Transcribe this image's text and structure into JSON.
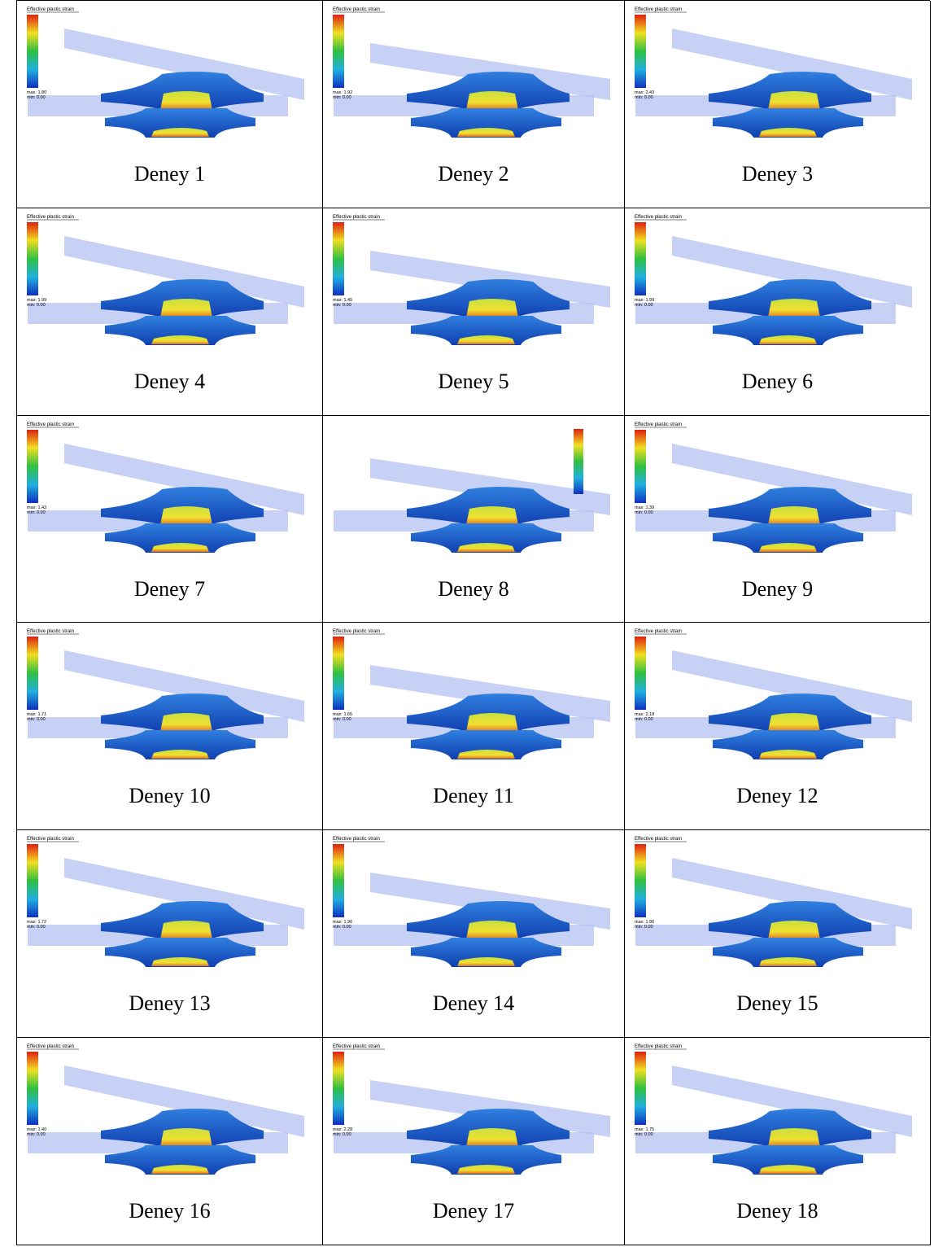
{
  "cells": [
    {
      "caption": "Deney 1",
      "legend": {
        "title": "Effective plastic strain",
        "max": "max: 1.80",
        "min": "min: 0.00"
      }
    },
    {
      "caption": "Deney 2",
      "legend": {
        "title": "Effective plastic strain",
        "max": "max: 1.92",
        "min": "min: 0.00"
      }
    },
    {
      "caption": "Deney 3",
      "legend": {
        "title": "Effective plastic strain",
        "max": "max: 2.43",
        "min": "min: 0.00"
      }
    },
    {
      "caption": "Deney 4",
      "legend": {
        "title": "Effective plastic strain",
        "max": "max: 1.99",
        "min": "min: 0.00"
      }
    },
    {
      "caption": "Deney 5",
      "legend": {
        "title": "Effective plastic strain",
        "max": "max: 1.45",
        "min": "min: 0.00"
      }
    },
    {
      "caption": "Deney 6",
      "legend": {
        "title": "Effective plastic strain",
        "max": "max: 1.99",
        "min": "min: 0.00"
      }
    },
    {
      "caption": "Deney 7",
      "legend": {
        "title": "Effective plastic strain",
        "max": "max: 1.43",
        "min": "min: 0.00"
      }
    },
    {
      "caption": "Deney 8"
    },
    {
      "caption": "Deney 9",
      "legend": {
        "title": "Effective plastic strain",
        "max": "max: 1.39",
        "min": "min: 0.00"
      }
    },
    {
      "caption": "Deney 10",
      "legend": {
        "title": "Effective plastic strain",
        "max": "max: 1.71",
        "min": "min: 0.00"
      }
    },
    {
      "caption": "Deney 11",
      "legend": {
        "title": "Effective plastic strain",
        "max": "max: 1.65",
        "min": "min: 0.00"
      }
    },
    {
      "caption": "Deney 12",
      "legend": {
        "title": "Effective plastic strain",
        "max": "max: 2.18",
        "min": "min: 0.00"
      }
    },
    {
      "caption": "Deney 13",
      "legend": {
        "title": "Effective plastic strain",
        "max": "max: 1.72",
        "min": "min: 0.00"
      }
    },
    {
      "caption": "Deney 14",
      "legend": {
        "title": "Effective plastic strain",
        "max": "max: 1.90",
        "min": "min: 0.00"
      }
    },
    {
      "caption": "Deney 15",
      "legend": {
        "title": "Effective plastic strain",
        "max": "max: 1.96",
        "min": "min: 0.00"
      }
    },
    {
      "caption": "Deney 16",
      "legend": {
        "title": "Effective plastic strain",
        "max": "max: 1.40",
        "min": "min: 0.00"
      }
    },
    {
      "caption": "Deney 17",
      "legend": {
        "title": "Effective plastic strain",
        "max": "max: 2.28",
        "min": "min: 0.00"
      }
    },
    {
      "caption": "Deney 18",
      "legend": {
        "title": "Effective plastic strain",
        "max": "max: 1.75",
        "min": "min: 0.00"
      }
    }
  ]
}
